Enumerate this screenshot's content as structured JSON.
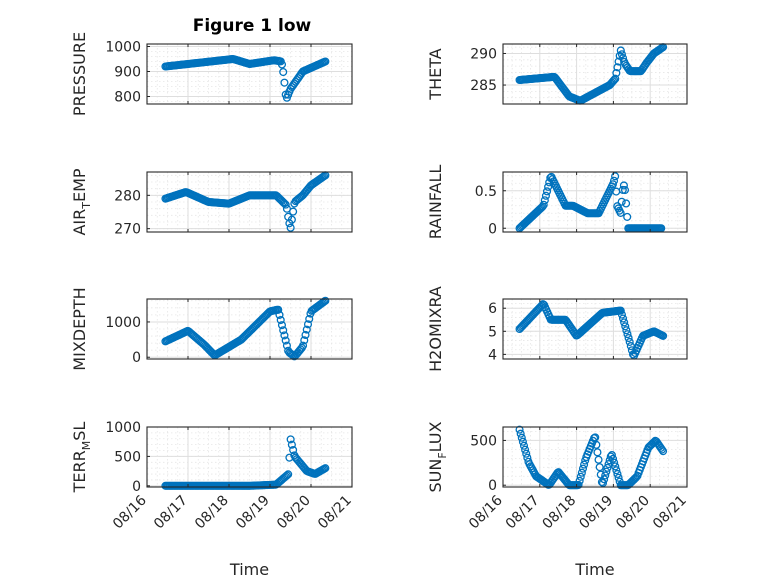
{
  "figure": {
    "title": "Figure 1 low",
    "marker_color": "#0072BD"
  },
  "chart_data": [
    {
      "type": "scatter",
      "id": "pressure",
      "ylabel": "PRESSURE",
      "ylim": [
        770,
        1010
      ],
      "yticks": [
        800,
        900,
        1000
      ],
      "xlim": [
        "08/16",
        "08/21"
      ],
      "xticks": [],
      "grid": true,
      "series": [
        {
          "x_days": [
            0.45,
            2.1,
            2.5,
            3.1,
            3.28,
            3.31,
            3.34,
            3.37,
            3.4,
            3.5,
            3.8,
            4.35
          ],
          "y": [
            920,
            950,
            930,
            945,
            940,
            910,
            880,
            820,
            790,
            830,
            900,
            940
          ]
        }
      ]
    },
    {
      "type": "scatter",
      "id": "theta",
      "ylabel": "THETA",
      "ylim": [
        282,
        291.5
      ],
      "yticks": [
        285,
        290
      ],
      "xlim": [
        "08/16",
        "08/21"
      ],
      "xticks": [],
      "grid": true,
      "series": [
        {
          "x_days": [
            0.45,
            1.4,
            1.8,
            2.1,
            2.9,
            3.05,
            3.1,
            3.2,
            3.3,
            3.45,
            3.75,
            3.9,
            4.1,
            4.35
          ],
          "y": [
            285.8,
            286.3,
            283.2,
            282.5,
            285,
            286,
            287.5,
            290.5,
            288.5,
            287.2,
            287.2,
            288.5,
            290,
            291
          ]
        }
      ]
    },
    {
      "type": "scatter",
      "id": "air_temp",
      "ylabel": "AIR",
      "ylabel_sub": "T",
      "ylabel_suffix": "EMP",
      "ylim": [
        269,
        287
      ],
      "yticks": [
        270,
        280
      ],
      "xlim": [
        "08/16",
        "08/21"
      ],
      "xticks": [],
      "grid": true,
      "series": [
        {
          "x_days": [
            0.45,
            0.95,
            1.5,
            2.0,
            2.5,
            3.15,
            3.4,
            3.45,
            3.5,
            3.6,
            3.8,
            4.0,
            4.35
          ],
          "y": [
            279,
            281,
            278,
            277.5,
            280,
            280,
            277,
            273,
            270,
            278,
            280,
            283,
            286
          ]
        }
      ]
    },
    {
      "type": "scatter",
      "id": "rainfall",
      "ylabel": "RAINFALL",
      "ylim": [
        -0.05,
        0.75
      ],
      "yticks": [
        0,
        0.5
      ],
      "xlim": [
        "08/16",
        "08/21"
      ],
      "xticks": [],
      "grid": true,
      "series": [
        {
          "x_days": [
            0.45,
            1.1,
            1.25,
            1.3,
            1.7,
            1.9,
            2.3,
            2.6,
            3.0,
            3.05,
            3.1,
            3.2,
            3.25,
            3.3,
            3.4,
            4.3
          ],
          "y": [
            0,
            0.3,
            0.6,
            0.7,
            0.3,
            0.3,
            0.2,
            0.2,
            0.6,
            0.7,
            0.3,
            0.2,
            0.5,
            0.6,
            0,
            0
          ]
        }
      ]
    },
    {
      "type": "scatter",
      "id": "mixdepth",
      "ylabel": "MIXDEPTH",
      "ylim": [
        -50,
        1650
      ],
      "yticks": [
        0,
        1000
      ],
      "xlim": [
        "08/16",
        "08/21"
      ],
      "xticks": [],
      "grid": true,
      "series": [
        {
          "x_days": [
            0.45,
            1.0,
            1.4,
            1.65,
            2.3,
            3.0,
            3.2,
            3.45,
            3.6,
            3.8,
            4.0,
            4.35
          ],
          "y": [
            450,
            750,
            350,
            50,
            500,
            1300,
            1350,
            150,
            20,
            300,
            1300,
            1600
          ]
        }
      ]
    },
    {
      "type": "scatter",
      "id": "h2omixra",
      "ylabel": "H2OMIXRA",
      "ylim": [
        3.8,
        6.4
      ],
      "yticks": [
        4,
        5,
        6
      ],
      "xlim": [
        "08/16",
        "08/21"
      ],
      "xticks": [],
      "grid": true,
      "series": [
        {
          "x_days": [
            0.45,
            1.1,
            1.3,
            1.7,
            2.0,
            2.7,
            3.2,
            3.45,
            3.55,
            3.8,
            4.1,
            4.35
          ],
          "y": [
            5.1,
            6.2,
            5.5,
            5.5,
            4.8,
            5.8,
            5.9,
            4.5,
            3.9,
            4.8,
            5.0,
            4.8
          ]
        }
      ]
    },
    {
      "type": "scatter",
      "id": "terr_msl",
      "ylabel": "TERR",
      "ylabel_sub": "M",
      "ylabel_suffix": "SL",
      "ylim": [
        -20,
        1000
      ],
      "yticks": [
        0,
        500,
        1000
      ],
      "xlim": [
        "08/16",
        "08/21"
      ],
      "xticklabels": [
        "08/16",
        "08/17",
        "08/18",
        "08/19",
        "08/20",
        "08/21"
      ],
      "xlabel": "Time",
      "grid": true,
      "series": [
        {
          "x_days": [
            0.45,
            1.5,
            2.5,
            3.15,
            3.45,
            3.5,
            3.6,
            3.9,
            4.1,
            4.35
          ],
          "y": [
            0,
            0,
            0,
            20,
            200,
            800,
            500,
            250,
            200,
            300
          ]
        }
      ]
    },
    {
      "type": "scatter",
      "id": "sun_flux",
      "ylabel": "SUN",
      "ylabel_sub": "F",
      "ylabel_suffix": "LUX",
      "ylim": [
        -20,
        650
      ],
      "yticks": [
        0,
        500
      ],
      "xlim": [
        "08/16",
        "08/21"
      ],
      "xticklabels": [
        "08/16",
        "08/17",
        "08/18",
        "08/19",
        "08/20",
        "08/21"
      ],
      "xlabel": "Time",
      "grid": true,
      "series": [
        {
          "x_days": [
            0.45,
            0.7,
            0.9,
            1.25,
            1.5,
            1.8,
            2.05,
            2.25,
            2.5,
            2.7,
            2.95,
            3.2,
            3.4,
            3.65,
            3.95,
            4.15,
            4.35
          ],
          "y": [
            620,
            250,
            100,
            0,
            150,
            0,
            0,
            300,
            550,
            0,
            350,
            0,
            0,
            100,
            420,
            500,
            380
          ]
        }
      ]
    }
  ]
}
